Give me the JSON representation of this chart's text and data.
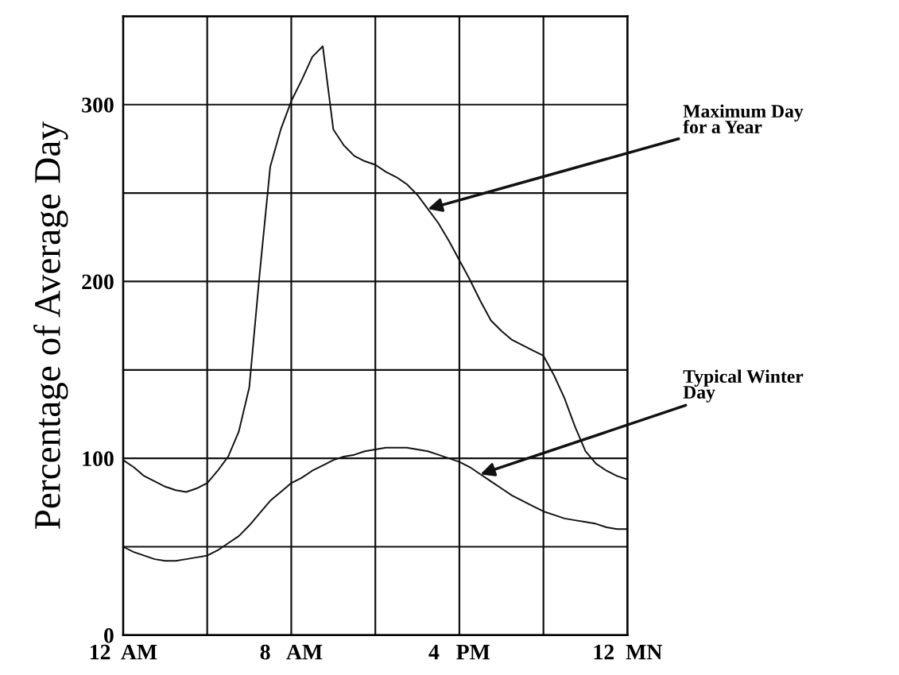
{
  "chart_data": {
    "type": "line",
    "ylabel": "Percentage of Average Day",
    "categories": [
      "12  AM",
      null,
      null,
      null,
      null,
      null,
      null,
      null,
      null,
      null,
      null,
      null,
      null,
      null,
      null,
      null,
      "8   AM",
      null,
      null,
      null,
      null,
      null,
      null,
      null,
      null,
      null,
      null,
      null,
      null,
      null,
      null,
      null,
      "4   PM",
      null,
      null,
      null,
      null,
      null,
      null,
      null,
      null,
      null,
      null,
      null,
      null,
      null,
      null,
      null,
      "12  MN"
    ],
    "ylim": [
      0,
      350
    ],
    "yticks": [
      0,
      {
        "value": 50,
        "label": null
      },
      100,
      {
        "value": 150,
        "label": null
      },
      200,
      {
        "value": 250,
        "label": null
      },
      300,
      {
        "value": 350,
        "label": null
      }
    ],
    "grid": true,
    "marker": "none",
    "line_style": "solid",
    "series": [
      {
        "color": "#111111",
        "values": [
          99,
          95,
          90,
          87,
          84,
          82,
          81,
          83,
          86,
          93,
          101,
          115,
          140,
          205,
          265,
          286,
          302,
          314,
          327,
          333,
          286,
          277,
          271,
          268,
          266,
          262,
          259,
          255,
          249,
          241,
          233,
          223,
          212,
          201,
          189,
          178,
          172,
          167,
          164,
          161,
          158,
          147,
          134,
          118,
          104,
          97,
          93,
          90,
          88
        ]
      },
      {
        "color": "#111111",
        "values": [
          50,
          47,
          45,
          43,
          42,
          42,
          43,
          44,
          45,
          48,
          52,
          56,
          62,
          69,
          76,
          81,
          86,
          89,
          93,
          96,
          99,
          101,
          102,
          104,
          105,
          106,
          106,
          106,
          105,
          104,
          102,
          100,
          98,
          95,
          91,
          87,
          83,
          79,
          76,
          73,
          70,
          68,
          66,
          65,
          64,
          63,
          61,
          60,
          60
        ]
      }
    ],
    "annotations": [
      "Maximum Day\nfor a Year",
      "Typical Winter\nDay"
    ]
  }
}
